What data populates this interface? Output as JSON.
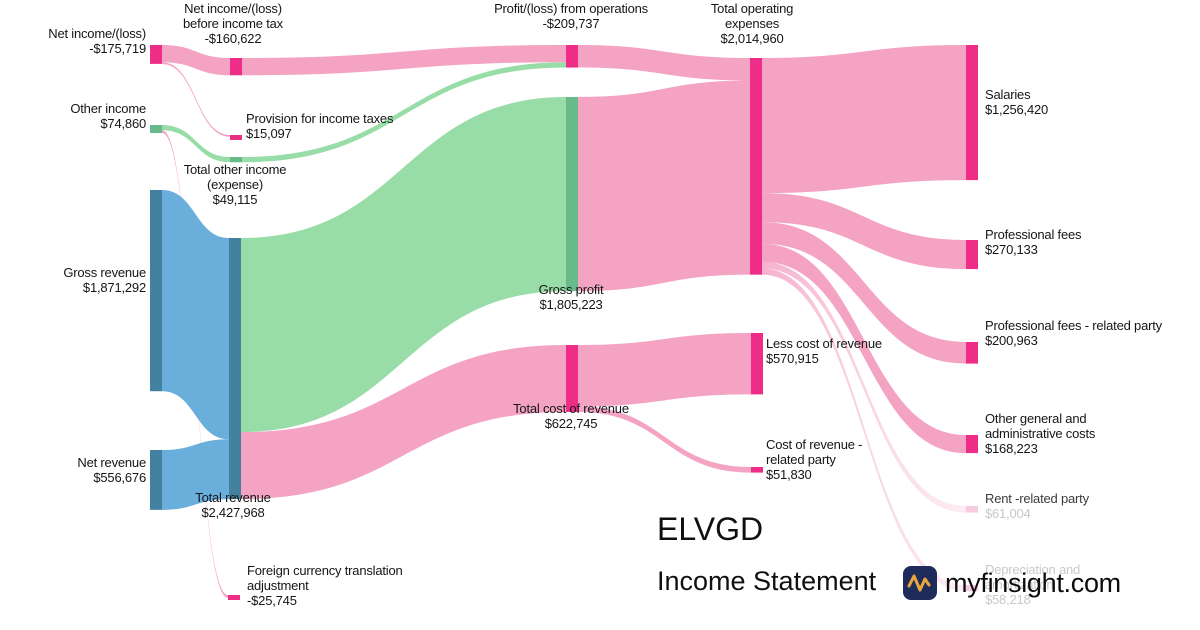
{
  "page": {
    "title": "ELVGD",
    "subtitle": "Income Statement",
    "brand": "myfinsight.com"
  },
  "colors": {
    "pink_node": "#EE2D87",
    "pink_flow": "#F4A3C3",
    "blue_node": "#44809F",
    "blue_flow": "#6AAEDC",
    "green_node": "#68BA8A",
    "green_flow": "#98DCA8",
    "faded_node": "#F7CBDF",
    "text": "#161616",
    "muted": "#C9C9C9",
    "brand_navy": "#1F2B5B",
    "brand_gold": "#E9A63C"
  },
  "chart_data": {
    "type": "sankey",
    "title": "ELVGD",
    "subtitle": "Income Statement",
    "unit": "USD",
    "nodes": {
      "net_income": {
        "label": "Net income/(loss)",
        "value_display": "-$175,719",
        "value": -175719,
        "color": "pink"
      },
      "ni_before_tax": {
        "label": "Net income/(loss) before income tax",
        "value_display": "-$160,622",
        "value": -160622,
        "color": "pink"
      },
      "provision": {
        "label": "Provision for income taxes",
        "value_display": "$15,097",
        "value": 15097,
        "color": "pink"
      },
      "other_income": {
        "label": "Other income",
        "value_display": "$74,860",
        "value": 74860,
        "color": "green"
      },
      "total_other_income": {
        "label": "Total other income (expense)",
        "value_display": "$49,115",
        "value": 49115,
        "color": "green"
      },
      "gross_revenue": {
        "label": "Gross revenue",
        "value_display": "$1,871,292",
        "value": 1871292,
        "color": "blue"
      },
      "net_revenue": {
        "label": "Net revenue",
        "value_display": "$556,676",
        "value": 556676,
        "color": "blue"
      },
      "total_revenue": {
        "label": "Total revenue",
        "value_display": "$2,427,968",
        "value": 2427968,
        "color": "blue"
      },
      "fx_adjustment": {
        "label": "Foreign currency translation adjustment",
        "value_display": "-$25,745",
        "value": -25745,
        "color": "pink"
      },
      "profit_ops": {
        "label": "Profit/(loss) from operations",
        "value_display": "-$209,737",
        "value": -209737,
        "color": "pink"
      },
      "gross_profit": {
        "label": "Gross profit",
        "value_display": "$1,805,223",
        "value": 1805223,
        "color": "green"
      },
      "total_cost": {
        "label": "Total cost of revenue",
        "value_display": "$622,745",
        "value": 622745,
        "color": "pink"
      },
      "total_opex": {
        "label": "Total operating expenses",
        "value_display": "$2,014,960",
        "value": 2014960,
        "color": "pink"
      },
      "less_cost": {
        "label": "Less cost of revenue",
        "value_display": "$570,915",
        "value": 570915,
        "color": "pink"
      },
      "cost_rp": {
        "label": "Cost of revenue - related party",
        "value_display": "$51,830",
        "value": 51830,
        "color": "pink"
      },
      "salaries": {
        "label": "Salaries",
        "value_display": "$1,256,420",
        "value": 1256420,
        "color": "pink"
      },
      "prof_fees": {
        "label": "Professional fees",
        "value_display": "$270,133",
        "value": 270133,
        "color": "pink"
      },
      "prof_fees_rp": {
        "label": "Professional fees - related party",
        "value_display": "$200,963",
        "value": 200963,
        "color": "pink"
      },
      "other_ga": {
        "label": "Other general and administrative costs",
        "value_display": "$168,223",
        "value": 168223,
        "color": "pink"
      },
      "rent_rp": {
        "label": "Rent -related party",
        "value_display": "$61,004",
        "value": 61004,
        "color": "faded"
      },
      "depreciation": {
        "label": "Depreciation and amortization",
        "value_display": "$58,218",
        "value": 58218,
        "color": "faded"
      }
    },
    "links": [
      {
        "source": "net_income",
        "target": "ni_before_tax",
        "value": 160622,
        "color": "pink"
      },
      {
        "source": "net_income",
        "target": "provision",
        "value": 15097,
        "color": "pink"
      },
      {
        "source": "other_income",
        "target": "total_other_income",
        "value": 49115,
        "color": "green"
      },
      {
        "source": "other_income",
        "target": "fx_adjustment",
        "value": 25745,
        "color": "pink"
      },
      {
        "source": "gross_revenue",
        "target": "total_revenue",
        "value": 1871292,
        "color": "blue"
      },
      {
        "source": "net_revenue",
        "target": "total_revenue",
        "value": 556676,
        "color": "blue"
      },
      {
        "source": "ni_before_tax",
        "target": "profit_ops",
        "value": 160622,
        "color": "pink"
      },
      {
        "source": "total_other_income",
        "target": "profit_ops",
        "value": 49115,
        "color": "green"
      },
      {
        "source": "total_revenue",
        "target": "gross_profit",
        "value": 1805223,
        "color": "green"
      },
      {
        "source": "total_revenue",
        "target": "total_cost",
        "value": 622745,
        "color": "pink"
      },
      {
        "source": "profit_ops",
        "target": "total_opex",
        "value": 209737,
        "color": "pink"
      },
      {
        "source": "gross_profit",
        "target": "total_opex",
        "value": 1805223,
        "color": "pink"
      },
      {
        "source": "total_cost",
        "target": "less_cost",
        "value": 570915,
        "color": "pink"
      },
      {
        "source": "total_cost",
        "target": "cost_rp",
        "value": 51830,
        "color": "pink"
      },
      {
        "source": "total_opex",
        "target": "salaries",
        "value": 1256420,
        "color": "pink"
      },
      {
        "source": "total_opex",
        "target": "prof_fees",
        "value": 270133,
        "color": "pink"
      },
      {
        "source": "total_opex",
        "target": "prof_fees_rp",
        "value": 200963,
        "color": "pink"
      },
      {
        "source": "total_opex",
        "target": "other_ga",
        "value": 168223,
        "color": "pink"
      },
      {
        "source": "total_opex",
        "target": "rent_rp",
        "value": 61004,
        "color": "pink",
        "fade": true
      },
      {
        "source": "total_opex",
        "target": "depreciation",
        "value": 58218,
        "color": "pink",
        "fade": true
      }
    ]
  }
}
